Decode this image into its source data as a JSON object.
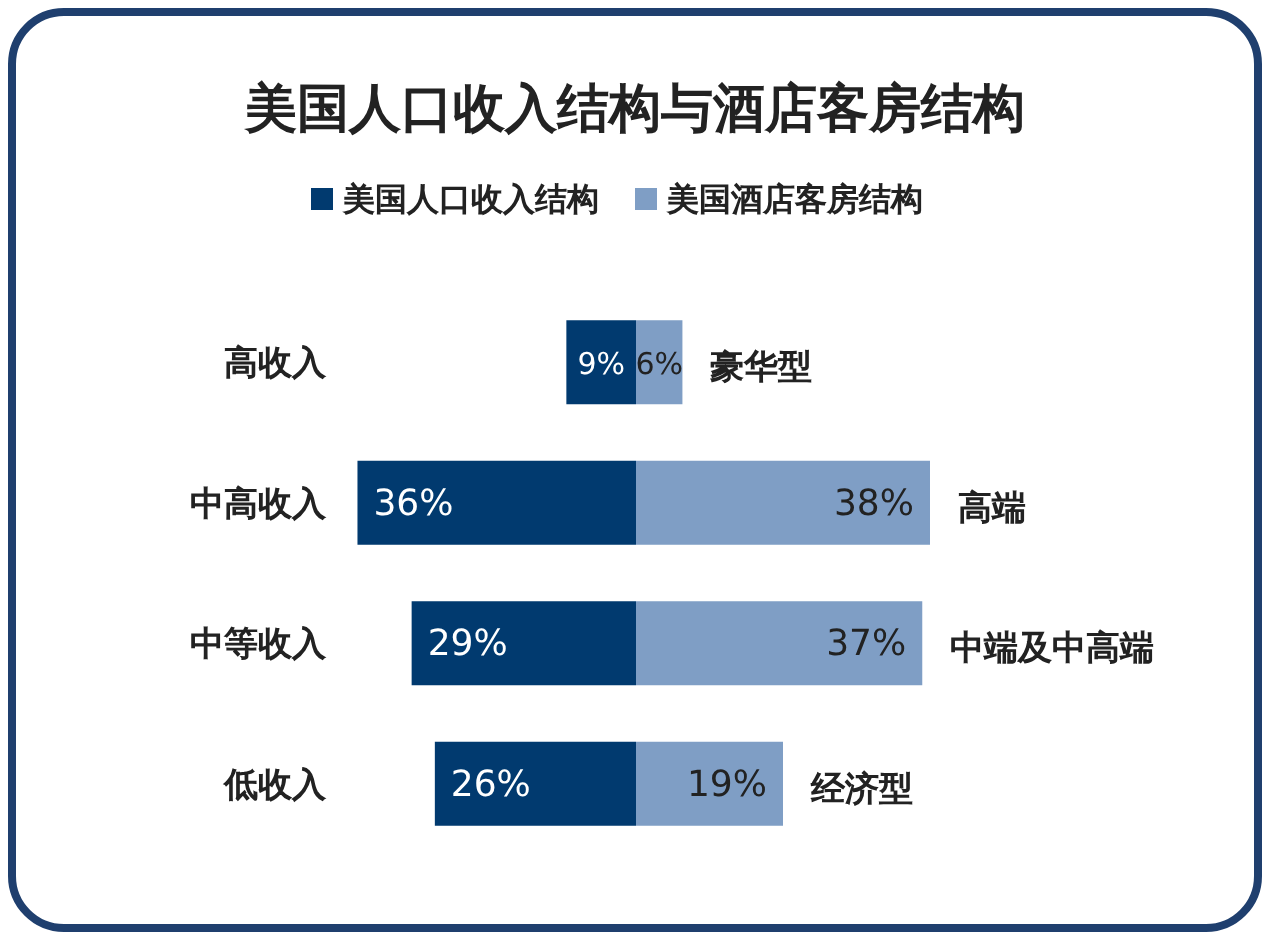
{
  "chart_data": [
    {
      "type": "bar",
      "title": "美国人口收入结构与酒店客房结构",
      "orientation": "horizontal",
      "categories": [
        "高收入",
        "中高收入",
        "中等收入",
        "低收入"
      ],
      "series": [
        {
          "name": "美国人口收入结构",
          "color": "#013a6f",
          "values": [
            9,
            36,
            29,
            26
          ],
          "value_labels": [
            "9%",
            "36%",
            "29%",
            "26%"
          ]
        }
      ],
      "legend": "top"
    },
    {
      "type": "bar",
      "orientation": "horizontal",
      "categories": [
        null,
        null,
        null,
        null
      ],
      "series": [
        {
          "name": "美国酒店客房结构",
          "color": "#7f9ec5",
          "values": [
            6,
            38,
            37,
            19
          ],
          "value_labels": [
            "6%",
            "38%",
            "37%",
            "19%"
          ]
        }
      ],
      "legend": "top",
      "annotations": [
        "豪华型",
        "高端",
        "中端及中高端",
        "经济型"
      ]
    }
  ]
}
